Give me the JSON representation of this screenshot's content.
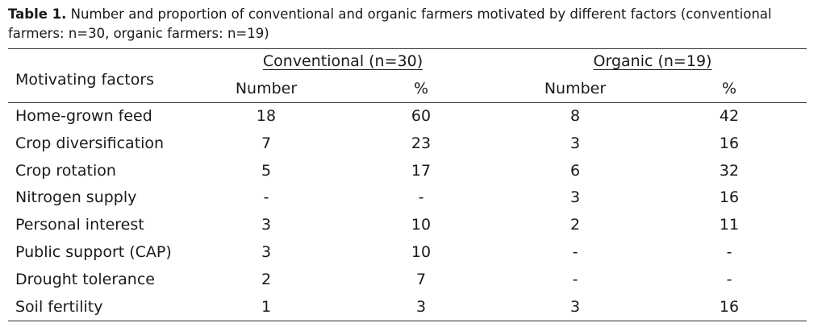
{
  "caption": {
    "label": "Table 1.",
    "text": " Number and proportion of conventional and organic farmers motivated by different factors (conventional farmers: n=30, organic farmers: n=19)"
  },
  "header": {
    "row_label": "Motivating factors",
    "group_conventional": "Conventional (n=30)",
    "group_organic": "Organic (n=19)",
    "number": "Number",
    "percent": "%"
  },
  "rows": [
    {
      "factor": "Home-grown feed",
      "conv_n": "18",
      "conv_p": "60",
      "org_n": "8",
      "org_p": "42"
    },
    {
      "factor": "Crop diversification",
      "conv_n": "7",
      "conv_p": "23",
      "org_n": "3",
      "org_p": "16"
    },
    {
      "factor": "Crop rotation",
      "conv_n": "5",
      "conv_p": "17",
      "org_n": "6",
      "org_p": "32"
    },
    {
      "factor": "Nitrogen supply",
      "conv_n": "-",
      "conv_p": "-",
      "org_n": "3",
      "org_p": "16"
    },
    {
      "factor": "Personal interest",
      "conv_n": "3",
      "conv_p": "10",
      "org_n": "2",
      "org_p": "11"
    },
    {
      "factor": "Public support (CAP)",
      "conv_n": "3",
      "conv_p": "10",
      "org_n": "-",
      "org_p": "-"
    },
    {
      "factor": "Drought tolerance",
      "conv_n": "2",
      "conv_p": "7",
      "org_n": "-",
      "org_p": "-"
    },
    {
      "factor": "Soil fertility",
      "conv_n": "1",
      "conv_p": "3",
      "org_n": "3",
      "org_p": "16"
    }
  ]
}
